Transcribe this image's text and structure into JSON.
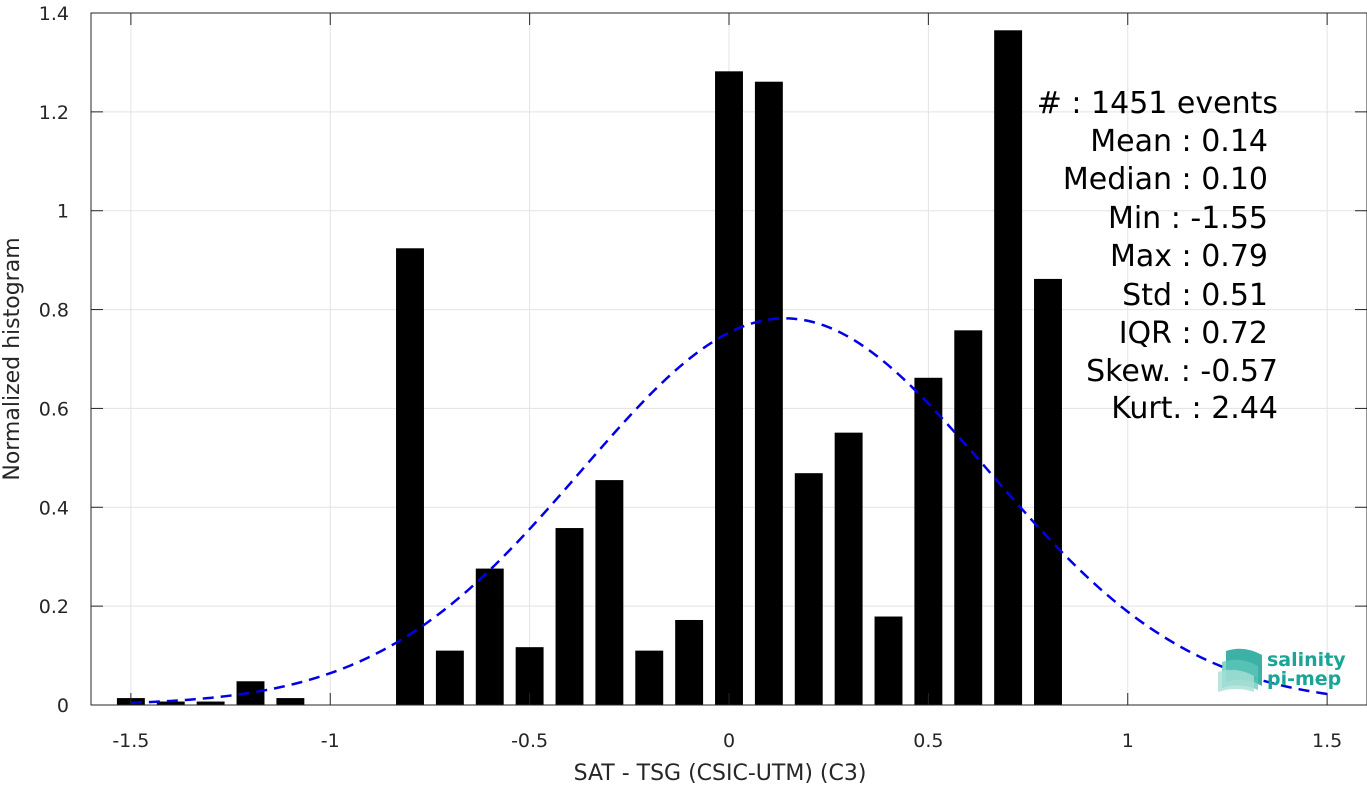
{
  "chart_data": {
    "type": "bar",
    "xlabel": "SAT - TSG (CSIC-UTM) (C3)",
    "ylabel": "Normalized histogram",
    "xlim": [
      -1.6,
      1.6
    ],
    "ylim": [
      0,
      1.4
    ],
    "grid": true,
    "x_ticks": [
      {
        "value": -1.5,
        "label": "-1.5"
      },
      {
        "value": -1,
        "label": "-1"
      },
      {
        "value": -0.5,
        "label": "-0.5"
      },
      {
        "value": 0,
        "label": "0"
      },
      {
        "value": 0.5,
        "label": "0.5"
      },
      {
        "value": 1,
        "label": "1"
      },
      {
        "value": 1.5,
        "label": "1.5"
      }
    ],
    "y_ticks": [
      {
        "value": 0,
        "label": "0"
      },
      {
        "value": 0.2,
        "label": "0.2"
      },
      {
        "value": 0.4,
        "label": "0.4"
      },
      {
        "value": 0.6,
        "label": "0.6"
      },
      {
        "value": 0.8,
        "label": "0.8"
      },
      {
        "value": 1,
        "label": "1"
      },
      {
        "value": 1.2,
        "label": "1.2"
      },
      {
        "value": 1.4,
        "label": "1.4"
      }
    ],
    "bar_color": "#000000",
    "bar_width": 0.07,
    "bars": [
      {
        "x": -1.5,
        "y": 0.014
      },
      {
        "x": -1.4,
        "y": 0.007
      },
      {
        "x": -1.3,
        "y": 0.007
      },
      {
        "x": -1.2,
        "y": 0.048
      },
      {
        "x": -1.1,
        "y": 0.014
      },
      {
        "x": -0.8,
        "y": 0.924
      },
      {
        "x": -0.7,
        "y": 0.11
      },
      {
        "x": -0.6,
        "y": 0.276
      },
      {
        "x": -0.5,
        "y": 0.117
      },
      {
        "x": -0.4,
        "y": 0.358
      },
      {
        "x": -0.3,
        "y": 0.455
      },
      {
        "x": -0.2,
        "y": 0.11
      },
      {
        "x": -0.1,
        "y": 0.172
      },
      {
        "x": 0.0,
        "y": 1.282
      },
      {
        "x": 0.1,
        "y": 1.261
      },
      {
        "x": 0.2,
        "y": 0.469
      },
      {
        "x": 0.3,
        "y": 0.551
      },
      {
        "x": 0.4,
        "y": 0.179
      },
      {
        "x": 0.5,
        "y": 0.662
      },
      {
        "x": 0.6,
        "y": 0.758
      },
      {
        "x": 0.7,
        "y": 1.365
      },
      {
        "x": 0.8,
        "y": 0.862
      }
    ],
    "fit_curve": {
      "style": "dashed",
      "color": "#0000e6",
      "mean": 0.14,
      "std": 0.51,
      "x_range": [
        -1.5,
        1.5
      ]
    },
    "stats": [
      {
        "label": "#  : 1451 events"
      },
      {
        "label": "Mean : 0.14"
      },
      {
        "label": "Median : 0.10"
      },
      {
        "label": "Min : -1.55"
      },
      {
        "label": "Max : 0.79"
      },
      {
        "label": "Std : 0.51"
      },
      {
        "label": "IQR : 0.72"
      },
      {
        "label": "Skew. : -0.57"
      },
      {
        "label": "Kurt. : 2.44"
      }
    ]
  },
  "logo": {
    "line1": "salinity",
    "line2": "pi-mep",
    "color": "#1aa596"
  }
}
